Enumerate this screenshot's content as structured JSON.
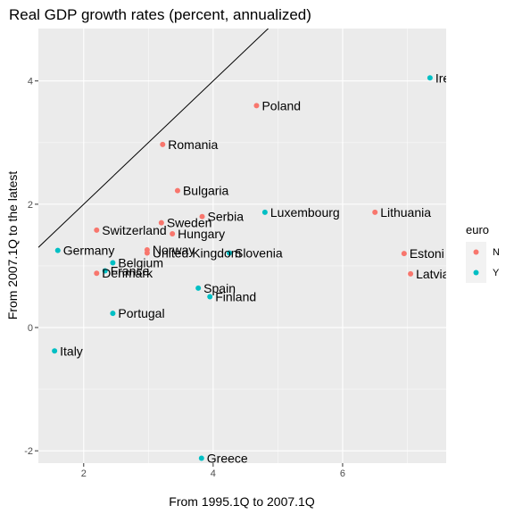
{
  "chart_data": {
    "type": "scatter",
    "title": "Real GDP growth rates (percent, annualized)",
    "xlabel": "From 1995.1Q to 2007.1Q",
    "ylabel": "From 2007.1Q to the latest",
    "xlim": [
      1.3,
      7.6
    ],
    "ylim": [
      -2.2,
      4.85
    ],
    "x_ticks": [
      2,
      4,
      6
    ],
    "y_ticks": [
      -2,
      0,
      2,
      4
    ],
    "grid": true,
    "reference_line": {
      "type": "y = x"
    },
    "legend": {
      "title": "euro",
      "position": "right",
      "entries": [
        {
          "label": "N",
          "color": "#F8766D"
        },
        {
          "label": "Y",
          "color": "#00BFC4"
        }
      ]
    },
    "points": [
      {
        "label": "Ireland",
        "shown_label": "Ire",
        "x": 7.35,
        "y": 4.05,
        "euro": "Y"
      },
      {
        "label": "Poland",
        "x": 4.67,
        "y": 3.6,
        "euro": "N"
      },
      {
        "label": "Romania",
        "x": 3.22,
        "y": 2.97,
        "euro": "N"
      },
      {
        "label": "Bulgaria",
        "x": 3.45,
        "y": 2.22,
        "euro": "N"
      },
      {
        "label": "Serbia",
        "x": 3.83,
        "y": 1.8,
        "euro": "N"
      },
      {
        "label": "Sweden",
        "x": 3.2,
        "y": 1.7,
        "euro": "N"
      },
      {
        "label": "Luxembourg",
        "x": 4.8,
        "y": 1.87,
        "euro": "Y"
      },
      {
        "label": "Lithuania",
        "x": 6.5,
        "y": 1.87,
        "euro": "N"
      },
      {
        "label": "Switzerland",
        "x": 2.2,
        "y": 1.58,
        "euro": "N"
      },
      {
        "label": "Hungary",
        "x": 3.37,
        "y": 1.52,
        "euro": "N"
      },
      {
        "label": "Germany",
        "x": 1.6,
        "y": 1.25,
        "euro": "Y"
      },
      {
        "label": "Norway",
        "x": 2.98,
        "y": 1.26,
        "euro": "N"
      },
      {
        "label": "United Kingdom",
        "x": 2.98,
        "y": 1.21,
        "euro": "N"
      },
      {
        "label": "Slovenia",
        "x": 4.25,
        "y": 1.21,
        "euro": "Y"
      },
      {
        "label": "Estonia",
        "shown_label": "Estoni",
        "x": 6.95,
        "y": 1.2,
        "euro": "N"
      },
      {
        "label": "Belgium",
        "x": 2.45,
        "y": 1.05,
        "euro": "Y"
      },
      {
        "label": "France",
        "x": 2.33,
        "y": 0.92,
        "euro": "Y"
      },
      {
        "label": "Denmark",
        "x": 2.2,
        "y": 0.88,
        "euro": "N"
      },
      {
        "label": "Latvia",
        "x": 7.05,
        "y": 0.87,
        "euro": "N"
      },
      {
        "label": "Spain",
        "x": 3.77,
        "y": 0.64,
        "euro": "Y"
      },
      {
        "label": "Finland",
        "x": 3.95,
        "y": 0.5,
        "euro": "Y"
      },
      {
        "label": "Portugal",
        "x": 2.45,
        "y": 0.23,
        "euro": "Y"
      },
      {
        "label": "Italy",
        "x": 1.55,
        "y": -0.38,
        "euro": "Y"
      },
      {
        "label": "Greece",
        "x": 3.82,
        "y": -2.12,
        "euro": "Y"
      }
    ]
  }
}
